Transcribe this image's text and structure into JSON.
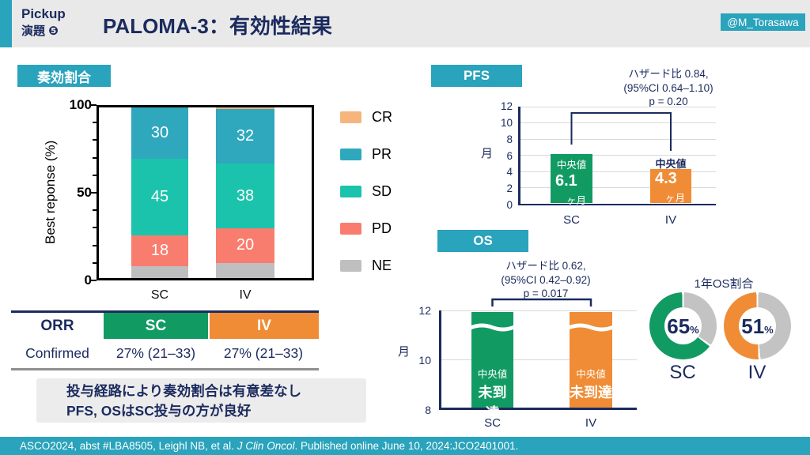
{
  "colors": {
    "teal": "#2aa3bc",
    "navy": "#1b2b5e",
    "green": "#119b63",
    "orange": "#ef8c35",
    "cr": "#f5b57d",
    "pr": "#2fa8bd",
    "sd": "#1cc3ac",
    "pd": "#f87d6f",
    "ne": "#bfbfbf",
    "grid": "#d9d9d9",
    "gray_remainder": "#c3c3c3",
    "header_bg": "#e9e9e9",
    "note_bg": "#ececec"
  },
  "header": {
    "pickup_line1": "Pickup",
    "pickup_line2": "演題 ❺",
    "title": "PALOMA-3：有効性結果",
    "badge": "@M_Torasawa"
  },
  "response": {
    "table": {
      "headers": [
        "ORR",
        "SC",
        "IV"
      ],
      "row_label": "Confirmed",
      "row_values": [
        "27% (21–33)",
        "27% (21–33)"
      ]
    },
    "note": [
      "投与経路により奏効割合は有意差なし",
      "PFS, OSはSC投与の方が良好"
    ]
  },
  "footer": {
    "pre": "ASCO2024, abst #LBA8505, Leighl NB, et al. ",
    "italic": "J Clin Oncol",
    "post": ". Published online June 10, 2024:JCO2401001."
  },
  "chart_data": [
    {
      "id": "best-response",
      "type": "stacked-bar",
      "title": "奏効割合",
      "ylabel": "Best reponse (%)",
      "ylim": [
        0,
        100
      ],
      "yticks": [
        0,
        50,
        100
      ],
      "minor_tick_step": 10,
      "categories": [
        "SC",
        "IV"
      ],
      "series": [
        {
          "name": "CR",
          "color_key": "cr",
          "values": [
            0,
            1
          ],
          "labeled": false
        },
        {
          "name": "PR",
          "color_key": "pr",
          "values": [
            30,
            32
          ],
          "labeled": true
        },
        {
          "name": "SD",
          "color_key": "sd",
          "values": [
            45,
            38
          ],
          "labeled": true
        },
        {
          "name": "PD",
          "color_key": "pd",
          "values": [
            18,
            20
          ],
          "labeled": true
        },
        {
          "name": "NE",
          "color_key": "ne",
          "values": [
            7,
            9
          ],
          "labeled": false
        }
      ],
      "legend_position": "right"
    },
    {
      "id": "pfs",
      "type": "bar",
      "title": "PFS",
      "ylabel": "月",
      "ylim": [
        0,
        12
      ],
      "yticks": [
        0,
        2,
        4,
        6,
        8,
        10,
        12
      ],
      "grid": true,
      "categories": [
        "SC",
        "IV"
      ],
      "values": [
        6.1,
        4.3
      ],
      "bar_colors": [
        "green",
        "orange"
      ],
      "bar_texts": [
        {
          "median": "中央値",
          "value": "6.1",
          "unit": "ヶ月",
          "median_pos": "inside"
        },
        {
          "median": "中央値",
          "value": "4.3",
          "unit": "ヶ月",
          "median_pos": "above"
        }
      ],
      "annotation": [
        "ハザード比 0.84,",
        "(95%CI 0.64–1.10)",
        "p = 0.20"
      ]
    },
    {
      "id": "os",
      "type": "bar",
      "title": "OS",
      "ylabel": "月",
      "ylim": [
        8,
        12
      ],
      "yticks": [
        8,
        10,
        12
      ],
      "grid": true,
      "axis_break": true,
      "categories": [
        "SC",
        "IV"
      ],
      "values": [
        "未到達",
        "未到達"
      ],
      "bar_colors": [
        "green",
        "orange"
      ],
      "bar_texts": [
        {
          "median": "中央値",
          "value": "未到達"
        },
        {
          "median": "中央値",
          "value": "未到達"
        }
      ],
      "annotation": [
        "ハザード比 0.62,",
        "(95%CI 0.42–0.92)",
        "p = 0.017"
      ]
    },
    {
      "id": "one-year-os",
      "type": "pie",
      "donut": true,
      "title": "1年OS割合",
      "categories": [
        "SC",
        "IV"
      ],
      "values": [
        65,
        51
      ],
      "unit": "%"
    }
  ]
}
